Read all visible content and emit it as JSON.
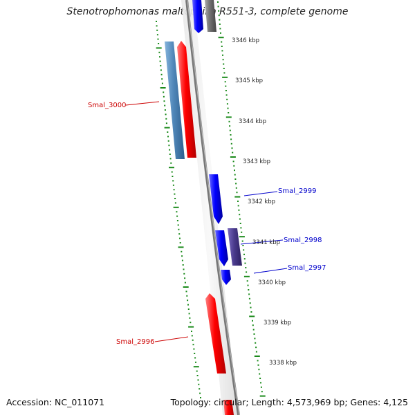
{
  "title": "Stenotrophomonas maltophilia R551-3, complete genome",
  "footer": {
    "accession": "Accession: NC_011071",
    "topology": "Topology: circular; Length: 4,573,969 bp; Genes: 4,125"
  },
  "scale_labels": [
    "3346 kbp",
    "3345 kbp",
    "3344 kbp",
    "3343 kbp",
    "3342 kbp",
    "3341 kbp",
    "3340 kbp",
    "3339 kbp",
    "3338 kbp"
  ],
  "gene_labels": [
    {
      "text": "Smal_3000",
      "color": "#cc0000"
    },
    {
      "text": "Smal_2999",
      "color": "#0000cc"
    },
    {
      "text": "Smal_2998",
      "color": "#0000cc"
    },
    {
      "text": "Smal_2997",
      "color": "#0000cc"
    },
    {
      "text": "Smal_2996",
      "color": "#cc0000"
    }
  ],
  "colors": {
    "forward_gene": "#ff0000",
    "reverse_gene": "#0000ff",
    "steelblue_gene": "#4f86b8",
    "purple_gene": "#4a3a8c",
    "gray_gene": "#707070",
    "backbone": "#777777",
    "tick_green": "#1a8a1a"
  }
}
